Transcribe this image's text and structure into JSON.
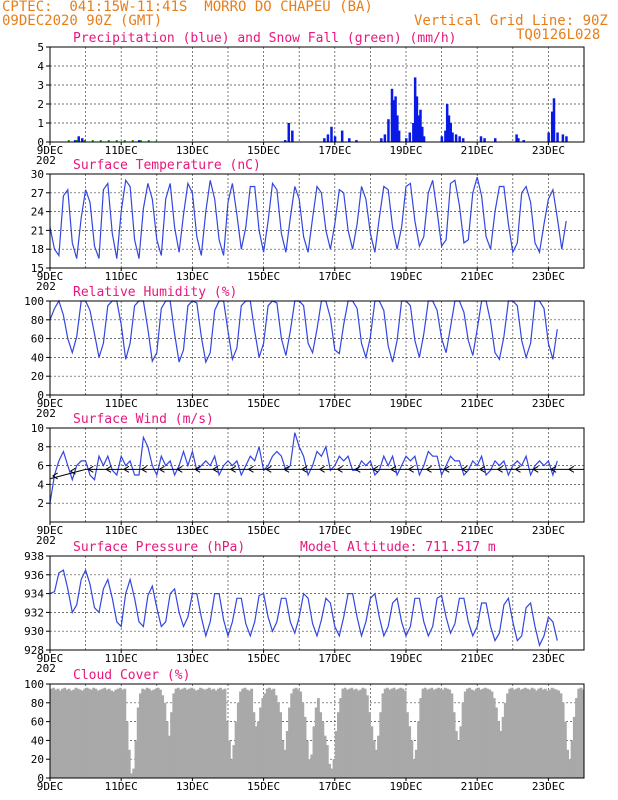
{
  "header": {
    "line1_left": "CPTEC:  041:15W-11:41S  MORRO DO CHAPEU (BA)",
    "line1_right": "",
    "line2_left": "09DEC2020 90Z (GMT)",
    "line2_right": "Vertical Grid Line: 90Z",
    "line3_right": "TQ0126L028",
    "color": "#e87e1a"
  },
  "x_axis": {
    "labels": [
      "9DEC",
      "11DEC",
      "13DEC",
      "15DEC",
      "17DEC",
      "19DEC",
      "21DEC",
      "23DEC"
    ],
    "days": 15,
    "overlap_stub": "202"
  },
  "colors": {
    "precip": "#0a1ae6",
    "snow": "#1a9e1a",
    "line": "#3346e0",
    "wind_vec": "#000000",
    "cloud": "#a9a9a9",
    "title": "#e8177d"
  },
  "chart_data": [
    {
      "id": "precip",
      "type": "bar",
      "title": "Precipitation (blue) and Snow Fall (green) (mm/h)",
      "ylim": [
        0,
        5
      ],
      "yticks": [
        0,
        1,
        2,
        3,
        4,
        5
      ],
      "x": "days since 9DEC 00Z",
      "series": [
        {
          "name": "Precipitation",
          "values": [
            [
              0.7,
              0.1
            ],
            [
              0.8,
              0.3
            ],
            [
              0.9,
              0.2
            ],
            [
              2.5,
              0.1
            ],
            [
              6.6,
              0.1
            ],
            [
              6.7,
              1.0
            ],
            [
              6.8,
              0.6
            ],
            [
              7.7,
              0.2
            ],
            [
              7.8,
              0.4
            ],
            [
              7.9,
              0.8
            ],
            [
              8.0,
              0.3
            ],
            [
              8.2,
              0.6
            ],
            [
              8.4,
              0.2
            ],
            [
              8.6,
              0.1
            ],
            [
              9.3,
              0.2
            ],
            [
              9.4,
              0.4
            ],
            [
              9.5,
              1.2
            ],
            [
              9.6,
              2.8
            ],
            [
              9.65,
              2.2
            ],
            [
              9.7,
              2.4
            ],
            [
              9.75,
              1.4
            ],
            [
              9.8,
              0.6
            ],
            [
              10.0,
              0.2
            ],
            [
              10.1,
              0.5
            ],
            [
              10.2,
              1.0
            ],
            [
              10.25,
              3.4
            ],
            [
              10.3,
              2.4
            ],
            [
              10.35,
              1.4
            ],
            [
              10.4,
              1.7
            ],
            [
              10.45,
              0.8
            ],
            [
              10.5,
              0.3
            ],
            [
              11.0,
              0.3
            ],
            [
              11.1,
              0.6
            ],
            [
              11.15,
              2.0
            ],
            [
              11.2,
              1.4
            ],
            [
              11.25,
              1.0
            ],
            [
              11.3,
              0.5
            ],
            [
              11.4,
              0.4
            ],
            [
              11.5,
              0.3
            ],
            [
              11.6,
              0.2
            ],
            [
              12.1,
              0.3
            ],
            [
              12.2,
              0.2
            ],
            [
              12.5,
              0.2
            ],
            [
              13.1,
              0.4
            ],
            [
              13.15,
              0.2
            ],
            [
              13.3,
              0.1
            ],
            [
              14.0,
              0.5
            ],
            [
              14.1,
              1.6
            ],
            [
              14.15,
              2.3
            ],
            [
              14.25,
              0.5
            ],
            [
              14.4,
              0.4
            ],
            [
              14.5,
              0.3
            ]
          ]
        },
        {
          "name": "Snow Fall",
          "values": []
        }
      ]
    },
    {
      "id": "temp",
      "type": "line",
      "title": "Surface Temperature (nC)",
      "ylim": [
        15,
        30
      ],
      "yticks": [
        15,
        18,
        21,
        24,
        27,
        30
      ],
      "x_step_days": 0.125,
      "series": [
        {
          "name": "Temperature",
          "values": [
            21.5,
            18,
            17,
            26.5,
            27.5,
            19,
            16.5,
            23,
            27.5,
            25.5,
            18.5,
            16.5,
            27.5,
            28.5,
            20.5,
            16.5,
            24,
            29,
            28,
            19.5,
            16.5,
            24.5,
            28.5,
            26,
            19.5,
            17,
            26,
            28.5,
            21.5,
            17.5,
            23.5,
            28.5,
            27,
            20,
            17,
            24,
            29,
            26,
            19.5,
            17,
            25.5,
            28.5,
            23.5,
            18,
            21.5,
            28,
            28,
            21,
            17.5,
            22.5,
            28.5,
            27.5,
            20.5,
            17.5,
            23,
            28,
            26,
            20,
            17.5,
            23,
            28,
            27,
            21,
            18,
            22,
            27.5,
            27,
            21,
            18,
            22,
            28,
            26,
            20.5,
            17.5,
            23,
            28,
            27.5,
            21.5,
            18,
            21.5,
            28,
            28.5,
            22.5,
            18.5,
            20,
            27,
            29,
            24,
            18.5,
            19.5,
            28.5,
            29,
            25,
            19,
            19.5,
            27,
            29.5,
            26.5,
            20,
            18,
            24,
            28,
            28,
            22,
            17.5,
            19,
            27,
            28,
            25.5,
            19,
            17.5,
            22,
            26,
            27.5,
            23,
            18,
            22.5
          ]
        }
      ]
    },
    {
      "id": "rh",
      "type": "line",
      "title": "Relative Humidity (%)",
      "ylim": [
        0,
        100
      ],
      "yticks": [
        0,
        20,
        40,
        60,
        80,
        100
      ],
      "x_step_days": 0.125,
      "series": [
        {
          "name": "Relative Humidity",
          "values": [
            80,
            92,
            100,
            85,
            60,
            45,
            62,
            100,
            100,
            90,
            65,
            40,
            55,
            95,
            100,
            100,
            75,
            38,
            55,
            95,
            100,
            100,
            70,
            36,
            45,
            92,
            100,
            100,
            65,
            35,
            48,
            95,
            100,
            98,
            62,
            35,
            45,
            90,
            100,
            100,
            68,
            38,
            50,
            95,
            100,
            100,
            68,
            40,
            55,
            95,
            100,
            98,
            60,
            42,
            68,
            100,
            100,
            95,
            55,
            45,
            70,
            100,
            100,
            82,
            48,
            44,
            75,
            100,
            100,
            92,
            55,
            40,
            62,
            100,
            100,
            90,
            52,
            35,
            58,
            100,
            100,
            95,
            58,
            40,
            65,
            100,
            100,
            90,
            60,
            45,
            72,
            100,
            100,
            88,
            58,
            42,
            70,
            100,
            100,
            78,
            45,
            38,
            62,
            100,
            100,
            95,
            58,
            40,
            55,
            100,
            100,
            92,
            55,
            38,
            70
          ]
        }
      ]
    },
    {
      "id": "wind",
      "type": "line",
      "title": "Surface Wind (m/s)",
      "ylim": [
        0,
        10
      ],
      "yticks": [
        2,
        4,
        6,
        8,
        10
      ],
      "x_step_days": 0.125,
      "series": [
        {
          "name": "Wind speed",
          "values": [
            2,
            5,
            6.5,
            7.5,
            6,
            4.5,
            6,
            6.5,
            6.5,
            5,
            4.5,
            7,
            6,
            7,
            5.5,
            5,
            7,
            6,
            6.5,
            5,
            5,
            9,
            8,
            6,
            5,
            7,
            6,
            6.5,
            5,
            6,
            7.5,
            6,
            7.5,
            5.5,
            6,
            6.5,
            6,
            7,
            5,
            6,
            6.5,
            6,
            6.5,
            5,
            6,
            7,
            6.5,
            8,
            5.5,
            6,
            7,
            7.5,
            7,
            5.5,
            6,
            9.5,
            8,
            7,
            5,
            6,
            7.5,
            7,
            8,
            5.5,
            6,
            7,
            6.5,
            7,
            5.5,
            5.5,
            6.5,
            6,
            6.5,
            5,
            5.5,
            7,
            6,
            7,
            5,
            6,
            7,
            6.5,
            7,
            5,
            6,
            7.5,
            7,
            7,
            5,
            6,
            7,
            6.5,
            6.5,
            5,
            5.5,
            6.5,
            6,
            7,
            5,
            5.5,
            6.5,
            6,
            6.5,
            5,
            6,
            6.5,
            6,
            7,
            5,
            6,
            6.5,
            6,
            6.5,
            5,
            6.5
          ]
        },
        {
          "name": "Wind direction (vectors)",
          "values": "easterly, arrows pointing west"
        }
      ]
    },
    {
      "id": "pressure",
      "type": "line",
      "title": "Surface Pressure (hPa)",
      "subtitle": "Model Altitude: 711.517 m",
      "ylim": [
        928,
        938
      ],
      "yticks": [
        928,
        930,
        932,
        934,
        936,
        938
      ],
      "x_step_days": 0.125,
      "series": [
        {
          "name": "Pressure",
          "values": [
            934,
            934.2,
            936.2,
            936.5,
            934.5,
            932,
            932.8,
            935.5,
            936.5,
            935,
            932.5,
            932,
            934.5,
            935.5,
            933.5,
            931,
            930.5,
            934,
            935.5,
            933.5,
            931,
            930.5,
            933.8,
            934.8,
            932.5,
            930.5,
            931,
            934,
            934.5,
            932,
            930.5,
            931.5,
            934,
            934,
            931.5,
            929.5,
            931,
            934,
            934,
            931.2,
            929.5,
            931,
            933.5,
            933.5,
            930.8,
            929.5,
            931,
            933.8,
            934,
            931.5,
            930,
            931,
            933.5,
            933.5,
            931,
            929.8,
            931.5,
            934,
            933.5,
            930.8,
            929.5,
            931.2,
            933.5,
            933,
            930.5,
            929.5,
            931.5,
            934,
            934,
            931.5,
            929.5,
            931,
            933.5,
            934,
            931.5,
            929.5,
            930.5,
            933,
            933.5,
            931,
            929.5,
            930.5,
            933.5,
            933.5,
            931,
            929.5,
            930.5,
            933.5,
            933.8,
            931.5,
            929.8,
            930.8,
            933.5,
            933.5,
            931,
            929.5,
            930.5,
            933,
            933,
            930.5,
            929,
            929.8,
            932.8,
            933.5,
            931,
            929,
            929.5,
            932.5,
            933,
            930.5,
            928.5,
            929.5,
            931.5,
            931,
            929
          ]
        }
      ]
    },
    {
      "id": "cloud",
      "type": "bar",
      "title": "Cloud Cover (%)",
      "ylim": [
        0,
        100
      ],
      "yticks": [
        0,
        20,
        40,
        60,
        80,
        100
      ],
      "x_step_days": 0.0625,
      "series": [
        {
          "name": "Cloud Cover",
          "values": [
            95,
            96,
            94,
            95,
            93,
            95,
            96,
            94,
            95,
            93,
            94,
            96,
            95,
            94,
            93,
            95,
            96,
            95,
            94,
            96,
            95,
            93,
            94,
            95,
            96,
            94,
            95,
            93,
            92,
            94,
            95,
            96,
            94,
            95,
            60,
            30,
            5,
            10,
            40,
            75,
            90,
            95,
            94,
            96,
            95,
            93,
            94,
            95,
            96,
            94,
            88,
            80,
            60,
            45,
            70,
            90,
            95,
            96,
            94,
            95,
            96,
            94,
            95,
            96,
            95,
            93,
            94,
            96,
            95,
            94,
            95,
            96,
            94,
            95,
            93,
            95,
            96,
            94,
            95,
            60,
            40,
            20,
            35,
            60,
            80,
            92,
            95,
            96,
            94,
            93,
            95,
            70,
            55,
            60,
            75,
            85,
            90,
            95,
            96,
            94,
            95,
            88,
            80,
            70,
            40,
            30,
            50,
            75,
            90,
            95,
            96,
            94,
            92,
            80,
            65,
            40,
            20,
            25,
            55,
            75,
            85,
            70,
            60,
            45,
            35,
            15,
            10,
            20,
            50,
            70,
            85,
            95,
            96,
            94,
            95,
            96,
            94,
            95,
            93,
            94,
            96,
            95,
            88,
            70,
            55,
            40,
            30,
            45,
            70,
            90,
            95,
            96,
            94,
            95,
            96,
            94,
            95,
            96,
            95,
            93,
            70,
            55,
            40,
            20,
            30,
            60,
            85,
            95,
            96,
            94,
            95,
            96,
            94,
            95,
            96,
            95,
            94,
            96,
            95,
            94,
            90,
            70,
            50,
            40,
            55,
            80,
            92,
            95,
            96,
            94,
            93,
            95,
            96,
            94,
            95,
            96,
            95,
            94,
            92,
            85,
            75,
            60,
            50,
            65,
            80,
            90,
            95,
            96,
            94,
            95,
            96,
            94,
            95,
            96,
            95,
            94,
            96,
            95,
            93,
            95,
            96,
            94,
            95,
            93,
            94,
            96,
            95,
            94,
            93,
            90,
            80,
            60,
            30,
            20,
            40,
            65,
            85,
            95,
            96,
            94,
            95,
            96,
            95,
            94,
            96,
            95,
            94,
            93,
            95
          ]
        }
      ]
    }
  ]
}
